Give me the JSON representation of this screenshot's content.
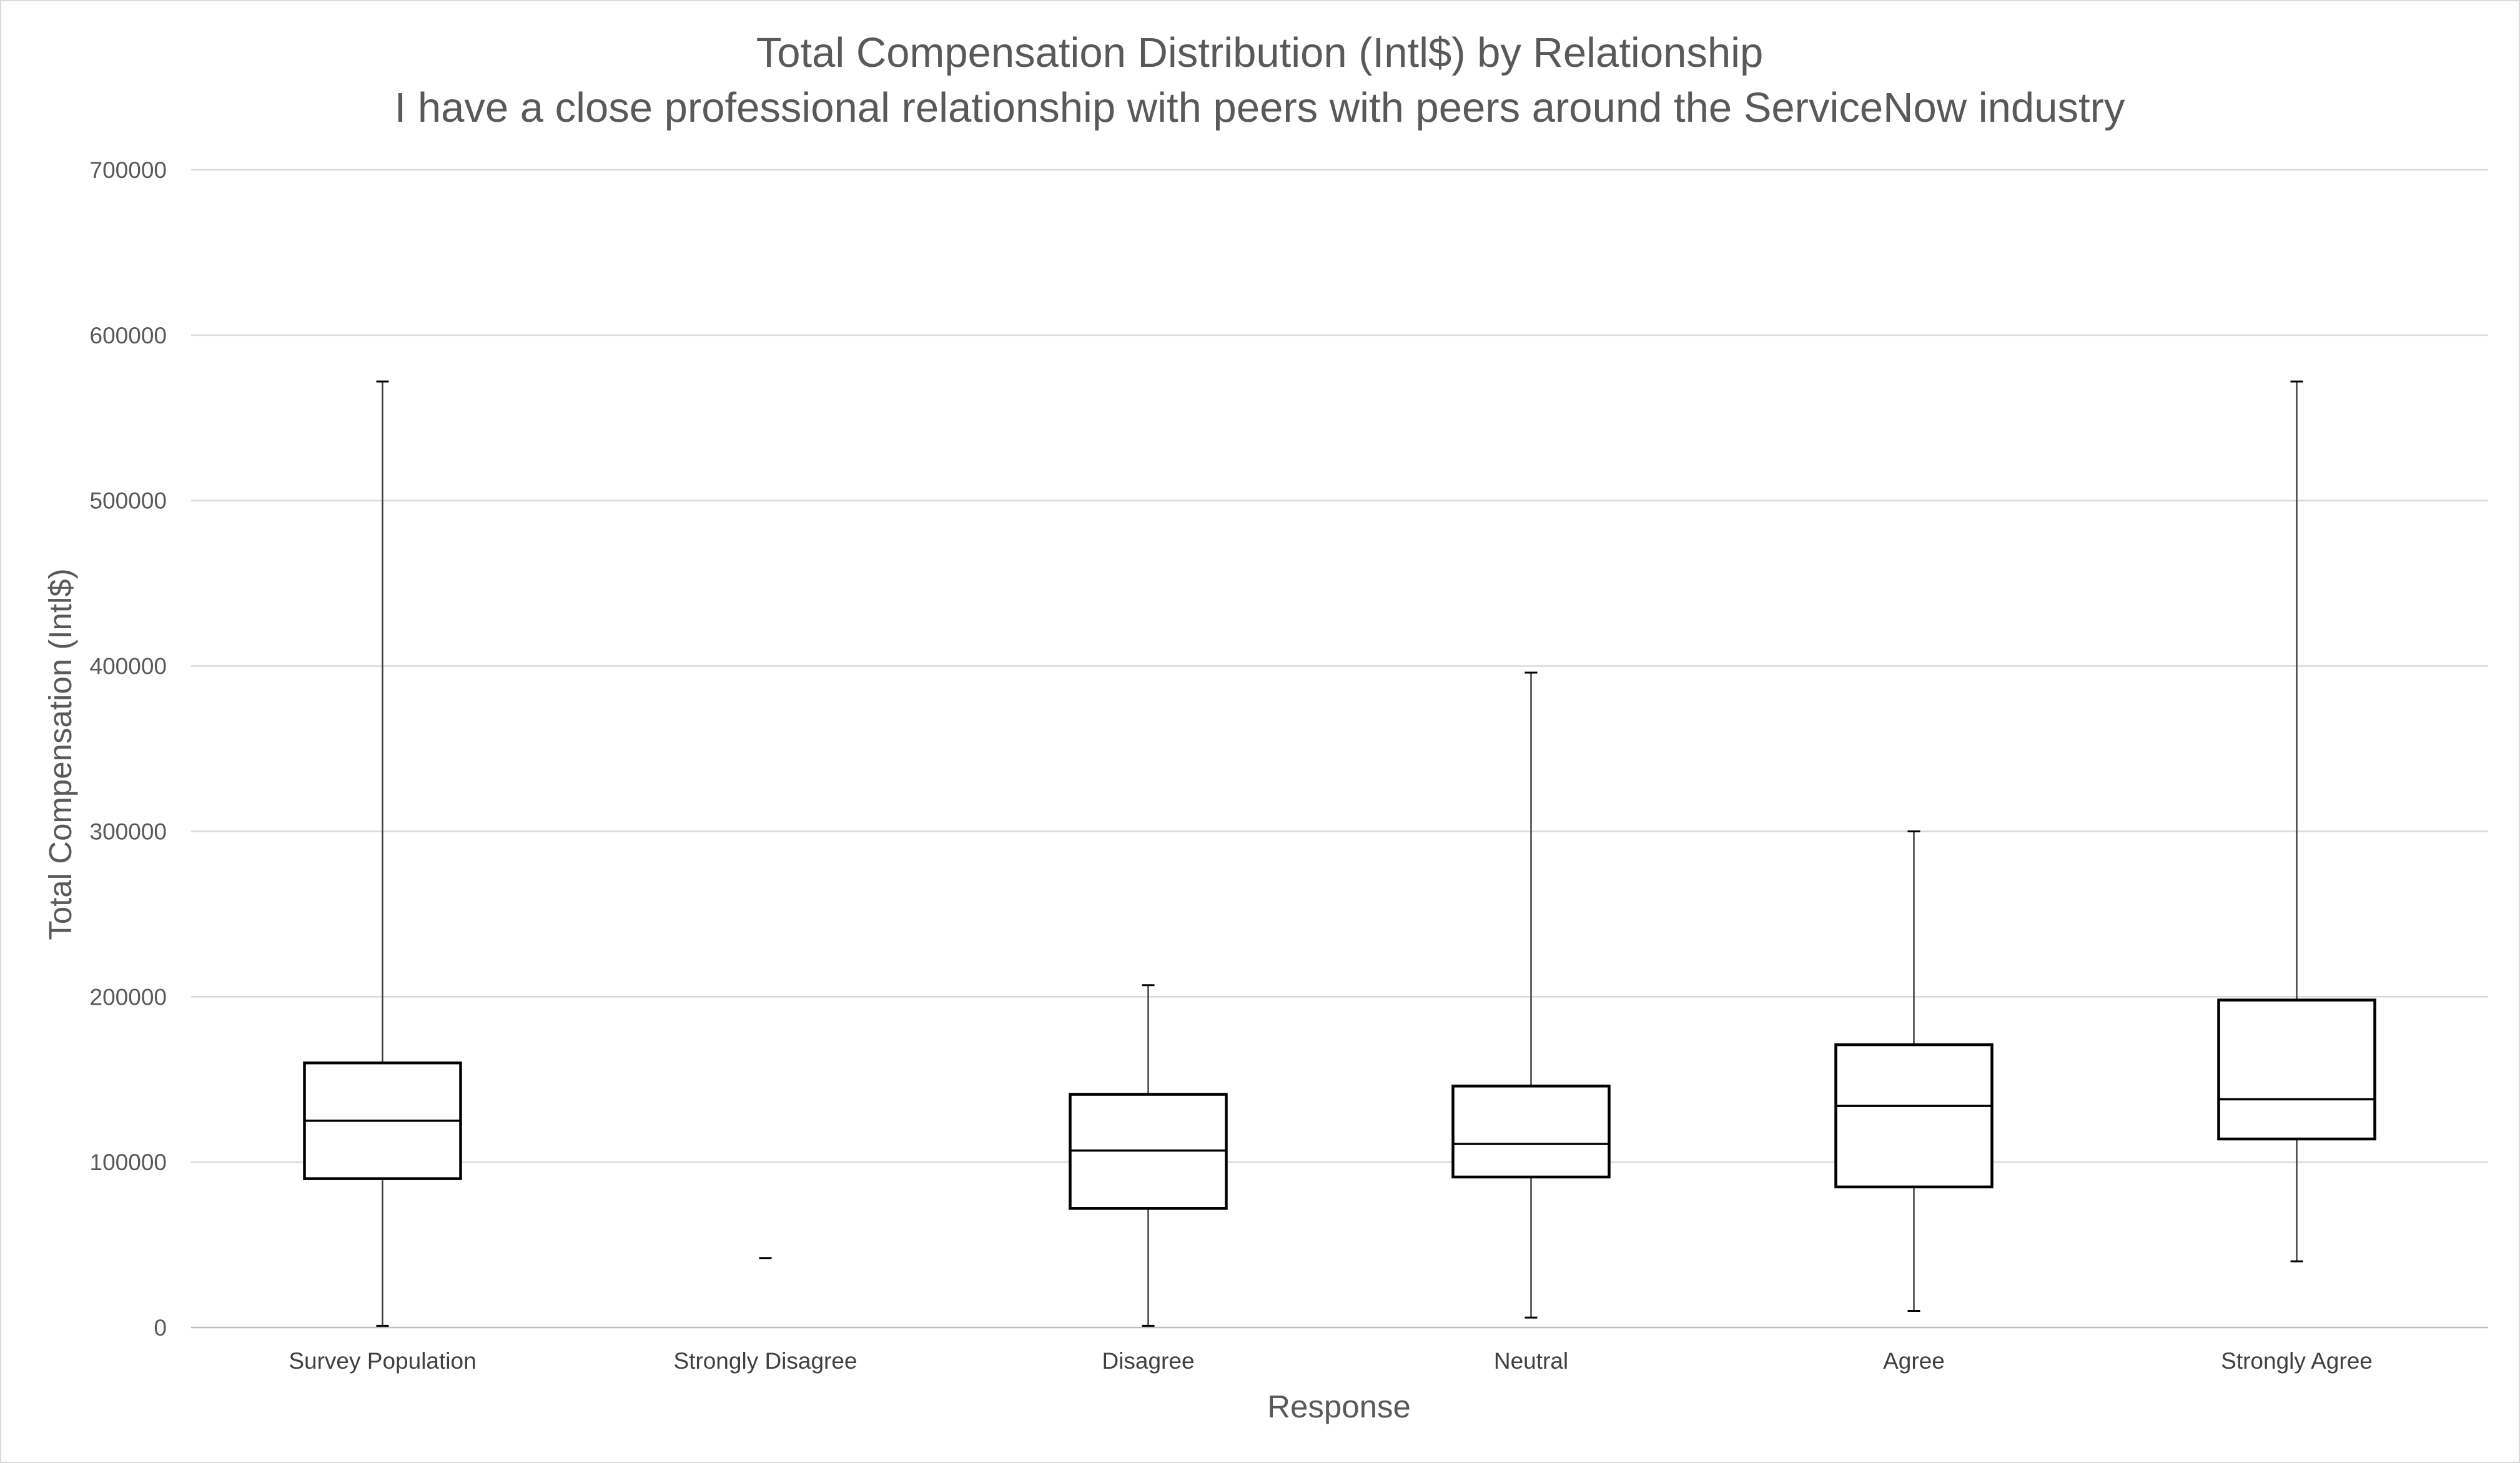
{
  "chart_data": {
    "type": "boxplot",
    "title": "Total Compensation Distribution (Intl$) by Relationship",
    "subtitle": "I have a close professional relationship with peers with peers around the ServiceNow industry",
    "xlabel": "Response",
    "ylabel": "Total Compensation (Intl$)",
    "ylim": [
      0,
      700000
    ],
    "yticks": [
      0,
      100000,
      200000,
      300000,
      400000,
      500000,
      600000,
      700000
    ],
    "ytick_labels": [
      "0",
      "100000",
      "200000",
      "300000",
      "400000",
      "500000",
      "600000",
      "700000"
    ],
    "grid": true,
    "categories": [
      "Survey Population",
      "Strongly Disagree",
      "Disagree",
      "Neutral",
      "Agree",
      "Strongly Agree"
    ],
    "boxes": [
      {
        "category": "Survey Population",
        "min": 1000,
        "q1": 90000,
        "median": 125000,
        "q3": 160000,
        "max": 572000
      },
      {
        "category": "Strongly Disagree",
        "min": 42000,
        "q1": 42000,
        "median": 42000,
        "q3": 42000,
        "max": 42000
      },
      {
        "category": "Disagree",
        "min": 1000,
        "q1": 72000,
        "median": 107000,
        "q3": 141000,
        "max": 207000
      },
      {
        "category": "Neutral",
        "min": 6000,
        "q1": 91000,
        "median": 111000,
        "q3": 146000,
        "max": 396000
      },
      {
        "category": "Agree",
        "min": 10000,
        "q1": 85000,
        "median": 134000,
        "q3": 171000,
        "max": 300000
      },
      {
        "category": "Strongly Agree",
        "min": 40000,
        "q1": 114000,
        "median": 138000,
        "q3": 198000,
        "max": 572000
      }
    ]
  }
}
